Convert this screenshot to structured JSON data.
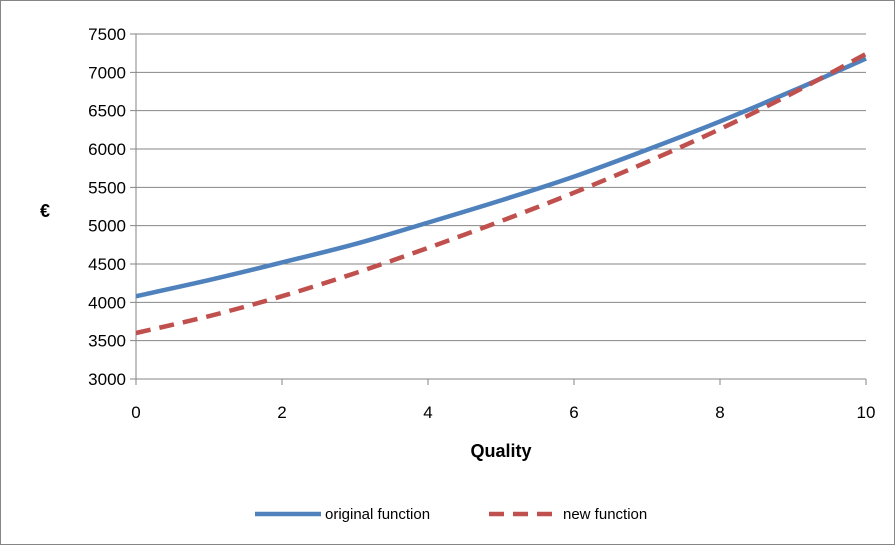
{
  "chart_data": {
    "type": "line",
    "xlabel": "Quality",
    "ylabel": "€",
    "xlim": [
      0,
      10
    ],
    "ylim": [
      3000,
      7500
    ],
    "x_ticks": [
      0,
      2,
      4,
      6,
      8,
      10
    ],
    "y_ticks": [
      3000,
      3500,
      4000,
      4500,
      5000,
      5500,
      6000,
      6500,
      7000,
      7500
    ],
    "grid": "horizontal",
    "legend_position": "bottom",
    "series": [
      {
        "name": "original function",
        "color": "#4f81bd",
        "style": "solid",
        "x": [
          0,
          1,
          2,
          3,
          4,
          5,
          6,
          7,
          8,
          9,
          10
        ],
        "y": [
          4080,
          4290,
          4520,
          4760,
          5040,
          5330,
          5640,
          5990,
          6360,
          6760,
          7180
        ]
      },
      {
        "name": "new function",
        "color": "#c0504d",
        "style": "dashed",
        "x": [
          0,
          1,
          2,
          3,
          4,
          5,
          6,
          7,
          8,
          9,
          10
        ],
        "y": [
          3600,
          3820,
          4080,
          4380,
          4710,
          5060,
          5430,
          5830,
          6260,
          6730,
          7240
        ]
      }
    ]
  }
}
